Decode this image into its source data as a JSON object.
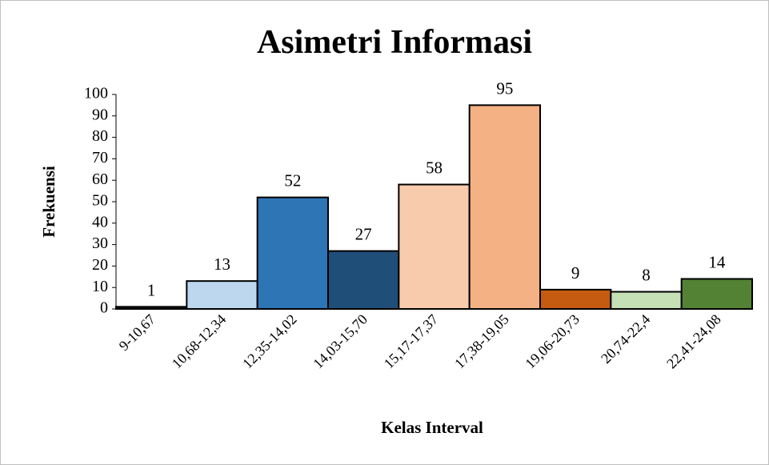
{
  "chart_data": {
    "type": "bar",
    "title": "Asimetri Informasi",
    "x_label": "Kelas Interval",
    "y_label": "Frekuensi",
    "categories": [
      "9-10,67",
      "10,68-12,34",
      "12,35-14,02",
      "14,03-15,70",
      "15,17-17,37",
      "17,38-19,05",
      "19,06-20,73",
      "20,74-22,4",
      "22,41-24,08"
    ],
    "values": [
      1,
      13,
      52,
      27,
      58,
      95,
      9,
      8,
      14
    ],
    "colors": [
      "#1a1a1a",
      "#bdd7ee",
      "#2e75b6",
      "#1f4e79",
      "#f8cbad",
      "#f4b183",
      "#c55a11",
      "#c5e0b4",
      "#548235"
    ],
    "ylim": [
      0,
      100
    ],
    "yticks": [
      0,
      10,
      20,
      30,
      40,
      50,
      60,
      70,
      80,
      90,
      100
    ],
    "grid": false
  }
}
